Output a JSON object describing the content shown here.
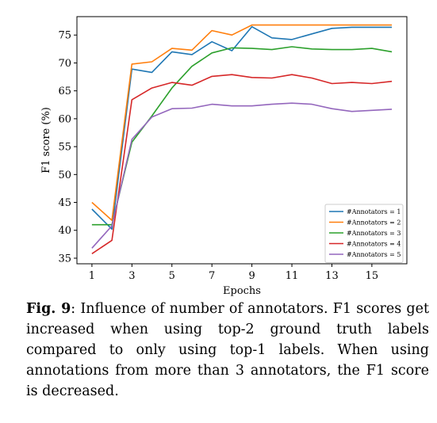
{
  "chart_data": {
    "type": "line",
    "title": "",
    "xlabel": "Epochs",
    "ylabel": "F1 score (%)",
    "x": [
      1,
      2,
      3,
      4,
      5,
      6,
      7,
      8,
      9,
      10,
      11,
      12,
      13,
      14,
      15,
      16
    ],
    "xticks": [
      "1",
      "3",
      "5",
      "7",
      "9",
      "11",
      "13",
      "15"
    ],
    "xtick_values": [
      1,
      3,
      5,
      7,
      9,
      11,
      13,
      15
    ],
    "yticks": [
      "35",
      "40",
      "45",
      "50",
      "55",
      "60",
      "65",
      "70",
      "75"
    ],
    "ytick_values": [
      35,
      40,
      45,
      50,
      55,
      60,
      65,
      70,
      75
    ],
    "xlim": [
      0.25,
      16.75
    ],
    "ylim": [
      34,
      78.3
    ],
    "grid": false,
    "legend_position": "lower-right",
    "series": [
      {
        "name": "#Annotators = 1",
        "color": "#1f77b4",
        "values": [
          43.8,
          40.2,
          68.9,
          68.3,
          72.0,
          71.5,
          73.8,
          72.2,
          76.5,
          74.5,
          74.2,
          75.2,
          76.2,
          76.4,
          76.4,
          76.4
        ]
      },
      {
        "name": "#Annotators = 2",
        "color": "#ff7f0e",
        "values": [
          45.0,
          41.8,
          69.8,
          70.2,
          72.6,
          72.3,
          75.8,
          75.0,
          76.8,
          76.8,
          76.8,
          76.8,
          76.8,
          76.8,
          76.8,
          76.8
        ]
      },
      {
        "name": "#Annotators = 3",
        "color": "#2ca02c",
        "values": [
          41.0,
          41.0,
          55.8,
          60.5,
          65.5,
          69.4,
          71.8,
          72.7,
          72.6,
          72.4,
          72.9,
          72.5,
          72.4,
          72.4,
          72.6,
          72.0
        ]
      },
      {
        "name": "#Annotators = 4",
        "color": "#d62728",
        "values": [
          35.8,
          38.2,
          63.4,
          65.5,
          66.5,
          66.0,
          67.6,
          67.9,
          67.4,
          67.3,
          67.9,
          67.3,
          66.3,
          66.5,
          66.3,
          66.7
        ]
      },
      {
        "name": "#Annotators = 5",
        "color": "#9467bd",
        "values": [
          36.8,
          40.8,
          56.3,
          60.3,
          61.8,
          61.9,
          62.6,
          62.3,
          62.3,
          62.6,
          62.8,
          62.6,
          61.8,
          61.3,
          61.5,
          61.7
        ]
      }
    ]
  },
  "caption": {
    "label": "Fig. 9",
    "text": ": Influence of number of annotators. F1 scores get increased when using top-2 ground truth labels compared to only using top-1 labels. When using annotations from more than 3 annotators, the F1 score is decreased."
  }
}
